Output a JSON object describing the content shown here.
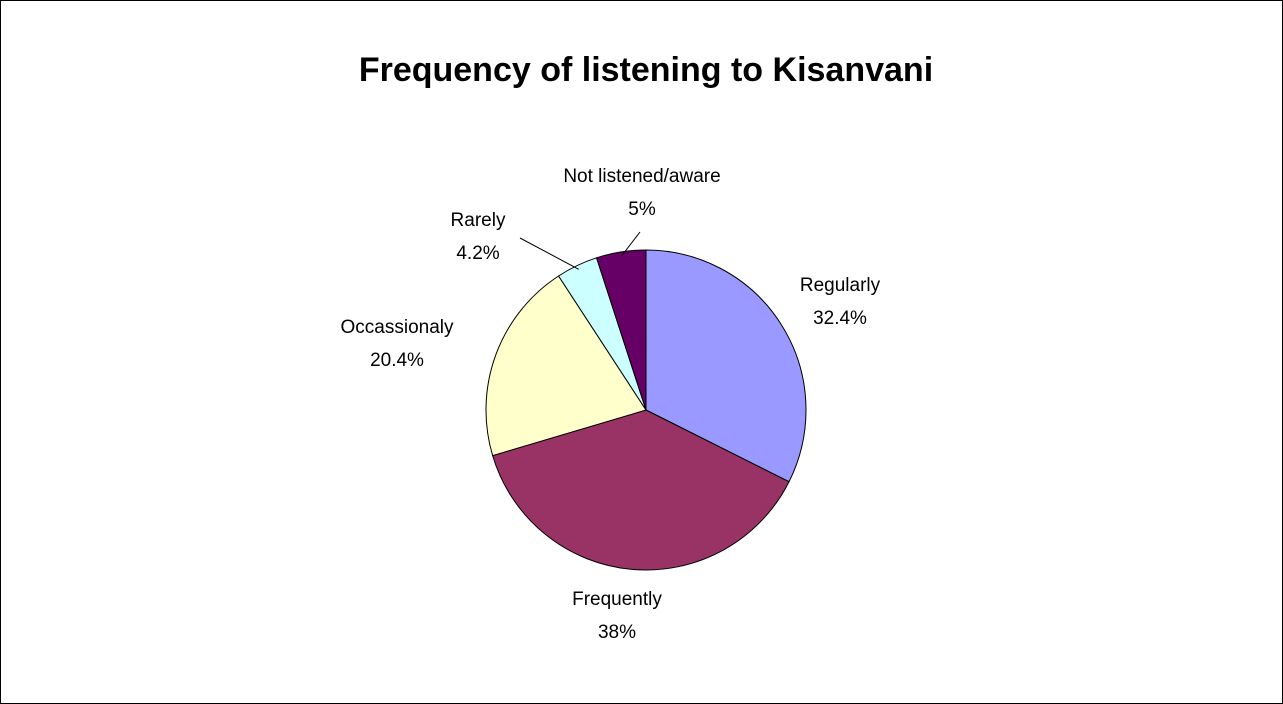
{
  "chart_data": {
    "type": "pie",
    "title": "Frequency of listening to Kisanvani",
    "categories": [
      "Regularly",
      "Frequently",
      "Occassionaly",
      "Rarely",
      "Not listened/aware"
    ],
    "values": [
      32.4,
      38,
      20.4,
      4.2,
      5
    ],
    "value_labels": [
      "32.4%",
      "38%",
      "20.4%",
      "4.2%",
      "5%"
    ],
    "colors": [
      "#9999ff",
      "#993366",
      "#ffffcc",
      "#ccffff",
      "#660066"
    ]
  }
}
